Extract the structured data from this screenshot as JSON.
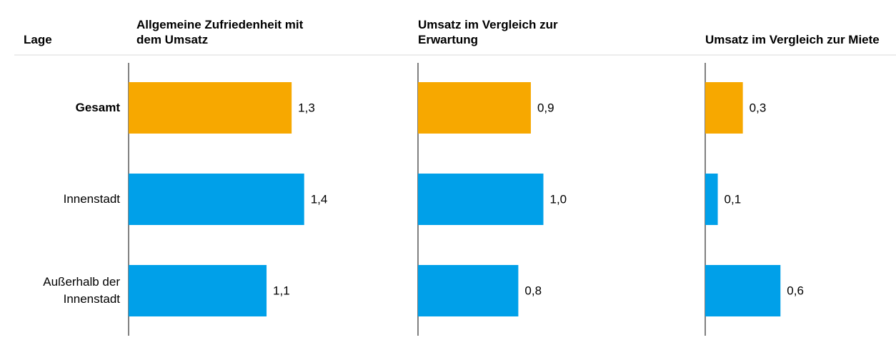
{
  "chart_data": {
    "type": "bar",
    "orientation": "horizontal",
    "row_header": "Lage",
    "categories": [
      "Gesamt",
      "Innenstadt",
      "Außerhalb der Innenstadt"
    ],
    "colors": [
      "#f7a800",
      "#00a0e9",
      "#00a0e9"
    ],
    "xlim": [
      0,
      2
    ],
    "series": [
      {
        "name": "Allgemeine Zufriedenheit mit dem Umsatz",
        "values": [
          1.3,
          1.4,
          1.1
        ],
        "value_labels": [
          "1,3",
          "1,4",
          "1,1"
        ]
      },
      {
        "name": "Umsatz im Vergleich zur Erwartung",
        "values": [
          0.9,
          1.0,
          0.8
        ],
        "value_labels": [
          "0,9",
          "1,0",
          "0,8"
        ]
      },
      {
        "name": "Umsatz im Vergleich zur Miete",
        "values": [
          0.3,
          0.1,
          0.6
        ],
        "value_labels": [
          "0,3",
          "0,1",
          "0,6"
        ]
      }
    ]
  }
}
